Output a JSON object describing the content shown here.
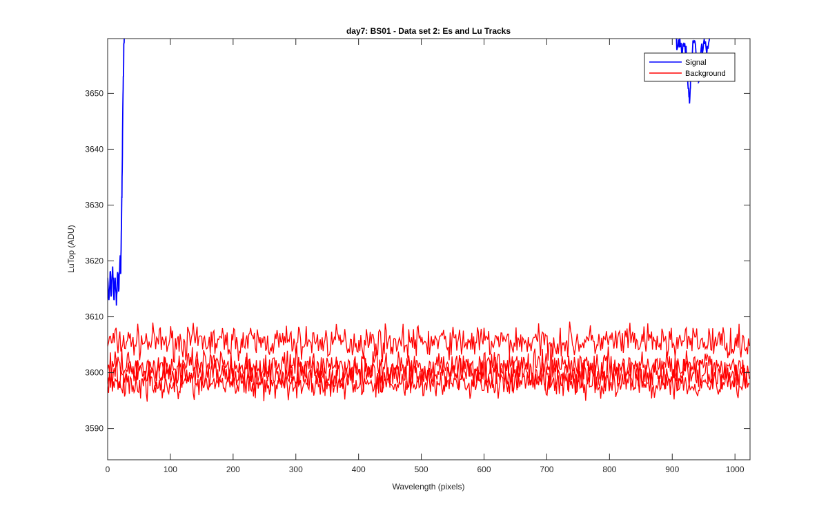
{
  "chart_data": {
    "type": "line",
    "title": "day7: BS01 - Data set 2: Es and Lu Tracks",
    "xlabel": "Wavelength (pixels)",
    "ylabel": "LuTop (ADU)",
    "xlim": [
      0,
      1024
    ],
    "ylim": [
      3584.4,
      3659.8
    ],
    "xticks": [
      0,
      100,
      200,
      300,
      400,
      500,
      600,
      700,
      800,
      900,
      1000
    ],
    "yticks": [
      3590,
      3600,
      3610,
      3620,
      3630,
      3640,
      3650
    ],
    "grid": false,
    "legend": {
      "location": "top-right",
      "entries": [
        {
          "label": "Signal",
          "color": "#0000ff"
        },
        {
          "label": "Background",
          "color": "#ff0000"
        }
      ]
    },
    "series": [
      {
        "name": "Signal",
        "color": "#0000ff",
        "segments": [
          {
            "x": [
              0,
              2,
              4,
              6,
              8,
              10,
              12,
              14,
              16,
              18,
              20,
              21,
              22,
              23,
              24,
              25,
              26,
              27
            ],
            "y": [
              3617,
              3613,
              3618,
              3614,
              3619,
              3613,
              3617,
              3612,
              3618,
              3615,
              3621,
              3618,
              3626,
              3635,
              3645,
              3653,
              3659,
              3662
            ]
          },
          {
            "x": [
              905,
              908,
              912,
              916,
              920,
              924,
              926,
              928,
              930,
              934,
              938,
              942,
              946,
              950,
              954,
              958,
              962
            ],
            "y": [
              3662,
              3658,
              3660,
              3657,
              3659,
              3655,
              3651,
              3649,
              3656,
              3659,
              3657,
              3652,
              3658,
              3659,
              3658,
              3659,
              3662
            ]
          }
        ]
      },
      {
        "name": "Background",
        "color": "#ff0000",
        "segments": [
          {
            "mean": 3605.5,
            "amplitude": 2.1
          },
          {
            "mean": 3601.2,
            "amplitude": 2.0
          },
          {
            "mean": 3599.6,
            "amplitude": 2.2
          },
          {
            "mean": 3598.0,
            "amplitude": 1.9
          }
        ]
      }
    ]
  }
}
